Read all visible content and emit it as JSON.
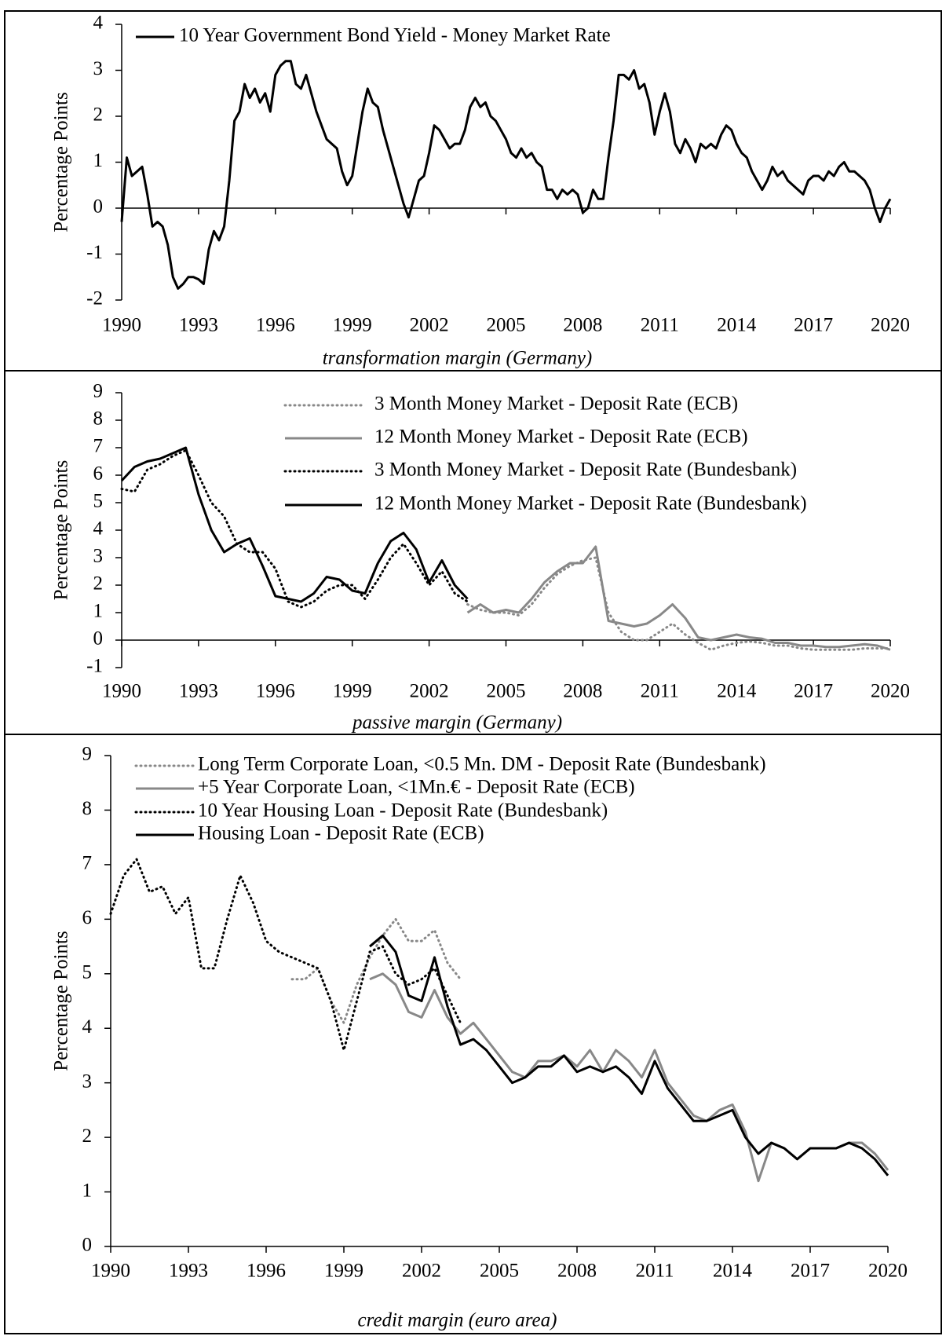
{
  "chart_data": [
    {
      "type": "line",
      "caption": "transformation margin (Germany)",
      "y_label": "Percentage Points",
      "xlim": [
        1990,
        2020
      ],
      "xticks": [
        1990,
        1993,
        1996,
        1999,
        2002,
        2005,
        2008,
        2011,
        2014,
        2017,
        2020
      ],
      "ylim": [
        -2,
        4
      ],
      "yticks": [
        -2,
        -1,
        0,
        1,
        2,
        3,
        4
      ],
      "x": [
        1990,
        1990.2,
        1990.4,
        1990.6,
        1990.8,
        1991,
        1991.2,
        1991.4,
        1991.6,
        1991.8,
        1992,
        1992.2,
        1992.4,
        1992.6,
        1992.8,
        1993,
        1993.2,
        1993.4,
        1993.6,
        1993.8,
        1994,
        1994.2,
        1994.4,
        1994.6,
        1994.8,
        1995,
        1995.2,
        1995.4,
        1995.6,
        1995.8,
        1996,
        1996.2,
        1996.4,
        1996.6,
        1996.8,
        1997,
        1997.2,
        1997.4,
        1997.6,
        1997.8,
        1998,
        1998.2,
        1998.4,
        1998.6,
        1998.8,
        1999,
        1999.2,
        1999.4,
        1999.6,
        1999.8,
        2000,
        2000.2,
        2000.4,
        2000.6,
        2000.8,
        2001,
        2001.2,
        2001.4,
        2001.6,
        2001.8,
        2002,
        2002.2,
        2002.4,
        2002.6,
        2002.8,
        2003,
        2003.2,
        2003.4,
        2003.6,
        2003.8,
        2004,
        2004.2,
        2004.4,
        2004.6,
        2004.8,
        2005,
        2005.2,
        2005.4,
        2005.6,
        2005.8,
        2006,
        2006.2,
        2006.4,
        2006.6,
        2006.8,
        2007,
        2007.2,
        2007.4,
        2007.6,
        2007.8,
        2008,
        2008.2,
        2008.4,
        2008.6,
        2008.8,
        2009,
        2009.2,
        2009.4,
        2009.6,
        2009.8,
        2010,
        2010.2,
        2010.4,
        2010.6,
        2010.8,
        2011,
        2011.2,
        2011.4,
        2011.6,
        2011.8,
        2012,
        2012.2,
        2012.4,
        2012.6,
        2012.8,
        2013,
        2013.2,
        2013.4,
        2013.6,
        2013.8,
        2014,
        2014.2,
        2014.4,
        2014.6,
        2014.8,
        2015,
        2015.2,
        2015.4,
        2015.6,
        2015.8,
        2016,
        2016.2,
        2016.4,
        2016.6,
        2016.8,
        2017,
        2017.2,
        2017.4,
        2017.6,
        2017.8,
        2018,
        2018.2,
        2018.4,
        2018.6,
        2018.8,
        2019,
        2019.2,
        2019.4,
        2019.6,
        2019.8,
        2020
      ],
      "series": [
        {
          "name": "10 Year Government Bond Yield - Money Market Rate",
          "color": "#000000",
          "style": "solid",
          "values": [
            -0.3,
            1.1,
            0.7,
            0.8,
            0.9,
            0.3,
            -0.4,
            -0.3,
            -0.4,
            -0.8,
            -1.5,
            -1.75,
            -1.65,
            -1.5,
            -1.5,
            -1.55,
            -1.65,
            -0.9,
            -0.5,
            -0.7,
            -0.4,
            0.6,
            1.9,
            2.1,
            2.7,
            2.4,
            2.6,
            2.3,
            2.5,
            2.1,
            2.9,
            3.1,
            3.2,
            3.2,
            2.7,
            2.6,
            2.9,
            2.5,
            2.1,
            1.8,
            1.5,
            1.4,
            1.3,
            0.8,
            0.5,
            0.7,
            1.4,
            2.1,
            2.6,
            2.3,
            2.2,
            1.7,
            1.3,
            0.9,
            0.5,
            0.1,
            -0.2,
            0.2,
            0.6,
            0.7,
            1.2,
            1.8,
            1.7,
            1.5,
            1.3,
            1.4,
            1.4,
            1.7,
            2.2,
            2.4,
            2.2,
            2.3,
            2.0,
            1.9,
            1.7,
            1.5,
            1.2,
            1.1,
            1.3,
            1.1,
            1.2,
            1.0,
            0.9,
            0.4,
            0.4,
            0.2,
            0.4,
            0.3,
            0.4,
            0.3,
            -0.1,
            0.0,
            0.4,
            0.2,
            0.2,
            1.1,
            1.9,
            2.9,
            2.9,
            2.8,
            3.0,
            2.6,
            2.7,
            2.3,
            1.6,
            2.1,
            2.5,
            2.1,
            1.4,
            1.2,
            1.5,
            1.3,
            1.0,
            1.4,
            1.3,
            1.4,
            1.3,
            1.6,
            1.8,
            1.7,
            1.4,
            1.2,
            1.1,
            0.8,
            0.6,
            0.4,
            0.6,
            0.9,
            0.7,
            0.8,
            0.6,
            0.5,
            0.4,
            0.3,
            0.6,
            0.7,
            0.7,
            0.6,
            0.8,
            0.7,
            0.9,
            1.0,
            0.8,
            0.8,
            0.7,
            0.6,
            0.4,
            0.0,
            -0.3,
            0.0,
            0.2
          ]
        }
      ]
    },
    {
      "type": "line",
      "caption": "passive margin (Germany)",
      "y_label": "Percentage Points",
      "xlim": [
        1990,
        2020
      ],
      "xticks": [
        1990,
        1993,
        1996,
        1999,
        2002,
        2005,
        2008,
        2011,
        2014,
        2017,
        2020
      ],
      "ylim": [
        -1,
        9
      ],
      "yticks": [
        -1,
        0,
        1,
        2,
        3,
        4,
        5,
        6,
        7,
        8,
        9
      ],
      "series": [
        {
          "name": "3 Month Money Market - Deposit Rate (ECB)",
          "color": "#888888",
          "style": "dotted",
          "x": [
            2003.5,
            2004,
            2004.5,
            2005,
            2005.5,
            2006,
            2006.5,
            2007,
            2007.5,
            2008,
            2008.5,
            2009,
            2009.5,
            2010,
            2010.5,
            2011,
            2011.5,
            2012,
            2012.5,
            2013,
            2013.5,
            2014,
            2014.5,
            2015,
            2015.5,
            2016,
            2016.5,
            2017,
            2017.5,
            2018,
            2018.5,
            2019,
            2019.5,
            2020
          ],
          "values": [
            1.3,
            1.1,
            1.0,
            1.0,
            0.9,
            1.3,
            1.9,
            2.4,
            2.7,
            2.9,
            3.0,
            1.0,
            0.3,
            0.0,
            0.0,
            0.3,
            0.6,
            0.2,
            -0.1,
            -0.35,
            -0.2,
            -0.1,
            -0.05,
            -0.1,
            -0.2,
            -0.2,
            -0.3,
            -0.35,
            -0.35,
            -0.35,
            -0.35,
            -0.3,
            -0.3,
            -0.3
          ]
        },
        {
          "name": "12 Month Money Market - Deposit Rate (ECB)",
          "color": "#888888",
          "style": "solid",
          "x": [
            2003.5,
            2004,
            2004.5,
            2005,
            2005.5,
            2006,
            2006.5,
            2007,
            2007.5,
            2008,
            2008.5,
            2009,
            2009.5,
            2010,
            2010.5,
            2011,
            2011.5,
            2012,
            2012.5,
            2013,
            2013.5,
            2014,
            2014.5,
            2015,
            2015.5,
            2016,
            2016.5,
            2017,
            2017.5,
            2018,
            2018.5,
            2019,
            2019.5,
            2020
          ],
          "values": [
            1.0,
            1.3,
            1.0,
            1.1,
            1.0,
            1.5,
            2.1,
            2.5,
            2.8,
            2.8,
            3.4,
            0.7,
            0.6,
            0.5,
            0.6,
            0.9,
            1.3,
            0.8,
            0.1,
            0.0,
            0.1,
            0.2,
            0.1,
            0.05,
            -0.1,
            -0.1,
            -0.2,
            -0.2,
            -0.25,
            -0.25,
            -0.2,
            -0.15,
            -0.2,
            -0.35
          ]
        },
        {
          "name": "3 Month Money Market - Deposit Rate (Bundesbank)",
          "color": "#000000",
          "style": "dotted",
          "x": [
            1990,
            1990.5,
            1991,
            1991.5,
            1992,
            1992.5,
            1993,
            1993.5,
            1994,
            1994.5,
            1995,
            1995.5,
            1996,
            1996.5,
            1997,
            1997.5,
            1998,
            1998.5,
            1999,
            1999.5,
            2000,
            2000.5,
            2001,
            2001.5,
            2002,
            2002.5,
            2003,
            2003.5
          ],
          "values": [
            5.5,
            5.4,
            6.2,
            6.4,
            6.7,
            6.9,
            6.0,
            5.0,
            4.5,
            3.5,
            3.2,
            3.2,
            2.6,
            1.4,
            1.2,
            1.4,
            1.8,
            2.0,
            2.0,
            1.5,
            2.2,
            3.0,
            3.5,
            2.8,
            2.0,
            2.5,
            1.7,
            1.4
          ]
        },
        {
          "name": "12 Month Money Market - Deposit Rate (Bundesbank)",
          "color": "#000000",
          "style": "solid",
          "x": [
            1990,
            1990.5,
            1991,
            1991.5,
            1992,
            1992.5,
            1993,
            1993.5,
            1994,
            1994.5,
            1995,
            1995.5,
            1996,
            1996.5,
            1997,
            1997.5,
            1998,
            1998.5,
            1999,
            1999.5,
            2000,
            2000.5,
            2001,
            2001.5,
            2002,
            2002.5,
            2003,
            2003.5
          ],
          "values": [
            5.8,
            6.3,
            6.5,
            6.6,
            6.8,
            7.0,
            5.3,
            4.0,
            3.2,
            3.5,
            3.7,
            2.7,
            1.6,
            1.5,
            1.4,
            1.7,
            2.3,
            2.2,
            1.8,
            1.7,
            2.8,
            3.6,
            3.9,
            3.3,
            2.1,
            2.9,
            2.0,
            1.5
          ]
        }
      ]
    },
    {
      "type": "line",
      "caption": "credit margin (euro area)",
      "y_label": "Percentage Points",
      "xlim": [
        1990,
        2020
      ],
      "xticks": [
        1990,
        1993,
        1996,
        1999,
        2002,
        2005,
        2008,
        2011,
        2014,
        2017,
        2020
      ],
      "ylim": [
        0,
        9
      ],
      "yticks": [
        0,
        1,
        2,
        3,
        4,
        5,
        6,
        7,
        8,
        9
      ],
      "series": [
        {
          "name": "Long Term Corporate Loan, <0.5 Mn. DM - Deposit Rate (Bundesbank)",
          "color": "#888888",
          "style": "dotted",
          "x": [
            1997,
            1997.5,
            1998,
            1998.5,
            1999,
            1999.5,
            2000,
            2000.5,
            2001,
            2001.5,
            2002,
            2002.5,
            2003,
            2003.5
          ],
          "values": [
            4.9,
            4.9,
            5.1,
            4.5,
            4.1,
            4.8,
            5.3,
            5.7,
            6.0,
            5.6,
            5.6,
            5.8,
            5.2,
            4.9
          ]
        },
        {
          "name": "+5 Year Corporate Loan, <1Mn.€ - Deposit Rate (ECB)",
          "color": "#888888",
          "style": "solid",
          "x": [
            2000,
            2000.5,
            2001,
            2001.5,
            2002,
            2002.5,
            2003,
            2003.5,
            2004,
            2004.5,
            2005,
            2005.5,
            2006,
            2006.5,
            2007,
            2007.5,
            2008,
            2008.5,
            2009,
            2009.5,
            2010,
            2010.5,
            2011,
            2011.5,
            2012,
            2012.5,
            2013,
            2013.5,
            2014,
            2014.5,
            2015,
            2015.5,
            2016,
            2016.5,
            2017,
            2017.5,
            2018,
            2018.5,
            2019,
            2019.5,
            2020
          ],
          "values": [
            4.9,
            5.0,
            4.8,
            4.3,
            4.2,
            4.7,
            4.2,
            3.9,
            4.1,
            3.8,
            3.5,
            3.2,
            3.1,
            3.4,
            3.4,
            3.5,
            3.3,
            3.6,
            3.2,
            3.6,
            3.4,
            3.1,
            3.6,
            3.0,
            2.7,
            2.4,
            2.3,
            2.5,
            2.6,
            2.1,
            1.2,
            1.9,
            1.8,
            1.6,
            1.8,
            1.8,
            1.8,
            1.9,
            1.9,
            1.7,
            1.4
          ]
        },
        {
          "name": "10 Year Housing Loan - Deposit Rate (Bundesbank)",
          "color": "#000000",
          "style": "dotted",
          "x": [
            1990,
            1990.5,
            1991,
            1991.5,
            1992,
            1992.5,
            1993,
            1993.5,
            1994,
            1994.5,
            1995,
            1995.5,
            1996,
            1996.5,
            1997,
            1997.5,
            1998,
            1998.5,
            1999,
            1999.5,
            2000,
            2000.5,
            2001,
            2001.5,
            2002,
            2002.5,
            2003,
            2003.5
          ],
          "values": [
            6.1,
            6.8,
            7.1,
            6.5,
            6.6,
            6.1,
            6.4,
            5.1,
            5.1,
            6.0,
            6.8,
            6.3,
            5.6,
            5.4,
            5.3,
            5.2,
            5.1,
            4.5,
            3.6,
            4.5,
            5.4,
            5.5,
            5.0,
            4.8,
            4.9,
            5.1,
            4.6,
            4.1
          ]
        },
        {
          "name": "Housing Loan - Deposit Rate (ECB)",
          "color": "#000000",
          "style": "solid",
          "x": [
            2000,
            2000.5,
            2001,
            2001.5,
            2002,
            2002.5,
            2003,
            2003.5,
            2004,
            2004.5,
            2005,
            2005.5,
            2006,
            2006.5,
            2007,
            2007.5,
            2008,
            2008.5,
            2009,
            2009.5,
            2010,
            2010.5,
            2011,
            2011.5,
            2012,
            2012.5,
            2013,
            2013.5,
            2014,
            2014.5,
            2015,
            2015.5,
            2016,
            2016.5,
            2017,
            2017.5,
            2018,
            2018.5,
            2019,
            2019.5,
            2020
          ],
          "values": [
            5.5,
            5.7,
            5.4,
            4.6,
            4.5,
            5.3,
            4.4,
            3.7,
            3.8,
            3.6,
            3.3,
            3.0,
            3.1,
            3.3,
            3.3,
            3.5,
            3.2,
            3.3,
            3.2,
            3.3,
            3.1,
            2.8,
            3.4,
            2.9,
            2.6,
            2.3,
            2.3,
            2.4,
            2.5,
            2.0,
            1.7,
            1.9,
            1.8,
            1.6,
            1.8,
            1.8,
            1.8,
            1.9,
            1.8,
            1.6,
            1.3
          ]
        }
      ]
    }
  ]
}
